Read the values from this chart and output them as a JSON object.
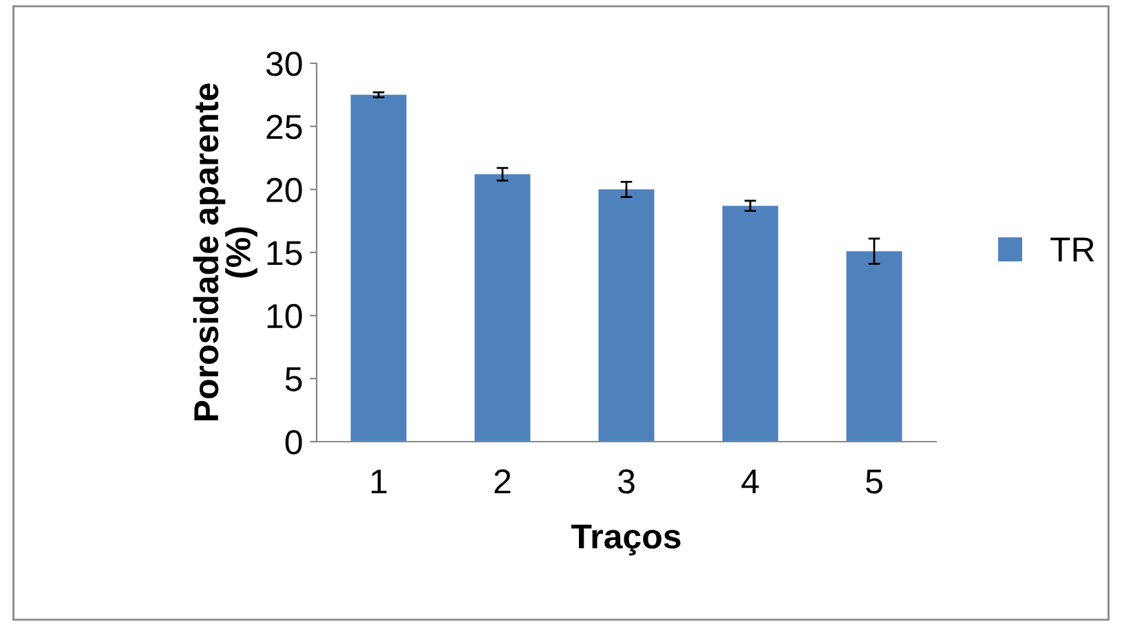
{
  "chart_data": {
    "type": "bar",
    "xlabel": "Traços",
    "ylabel": "Porosidade aparente\n(%)",
    "categories": [
      "1",
      "2",
      "3",
      "4",
      "5"
    ],
    "series": [
      {
        "name": "TR",
        "color": "#4f81bd",
        "values": [
          27.5,
          21.2,
          20.0,
          18.7,
          15.1
        ],
        "errors": [
          0.2,
          0.5,
          0.6,
          0.4,
          1.0
        ]
      }
    ],
    "ylim": [
      0,
      30
    ],
    "yticks": [
      0,
      5,
      10,
      15,
      20,
      25,
      30
    ],
    "grid": false,
    "legend": "right"
  }
}
